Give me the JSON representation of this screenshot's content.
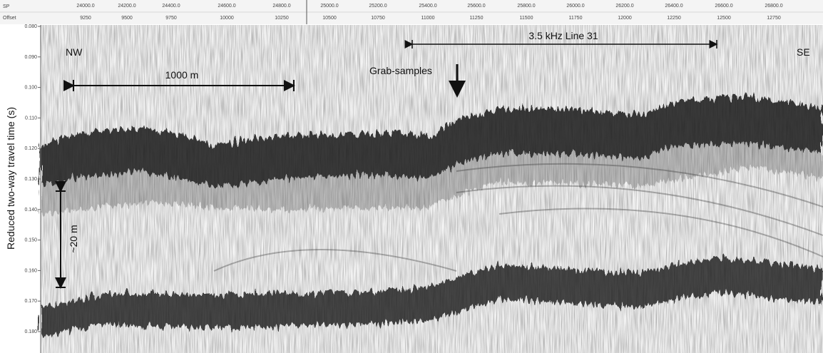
{
  "header": {
    "row_labels": [
      "SP",
      "Offset"
    ],
    "sp_labels": [
      "24000.0",
      "24200.0",
      "24400.0",
      "24600.0",
      "24800.0",
      "25000.0",
      "25200.0",
      "25400.0",
      "25600.0",
      "25800.0",
      "26000.0",
      "26200.0",
      "26400.0",
      "26600.0",
      "26800.0"
    ],
    "offset_labels": [
      "9250",
      "9500",
      "9750",
      "10000",
      "10250",
      "10500",
      "10750",
      "11000",
      "11250",
      "11500",
      "11750",
      "12000",
      "12250",
      "12500",
      "12750"
    ]
  },
  "axis": {
    "label": "Reduced two-way travel time (s)",
    "ticks": [
      "0.080",
      "0.090",
      "0.100",
      "0.110",
      "0.120",
      "0.130",
      "0.140",
      "0.150",
      "0.160",
      "0.170",
      "0.180"
    ]
  },
  "annotations": {
    "left_direction": "NW",
    "right_direction": "SE",
    "horizontal_scale": "1000 m",
    "line_name": "3.5 kHz Line 31",
    "samples": "Grab-samples",
    "vertical_scale": "~20 m"
  }
}
